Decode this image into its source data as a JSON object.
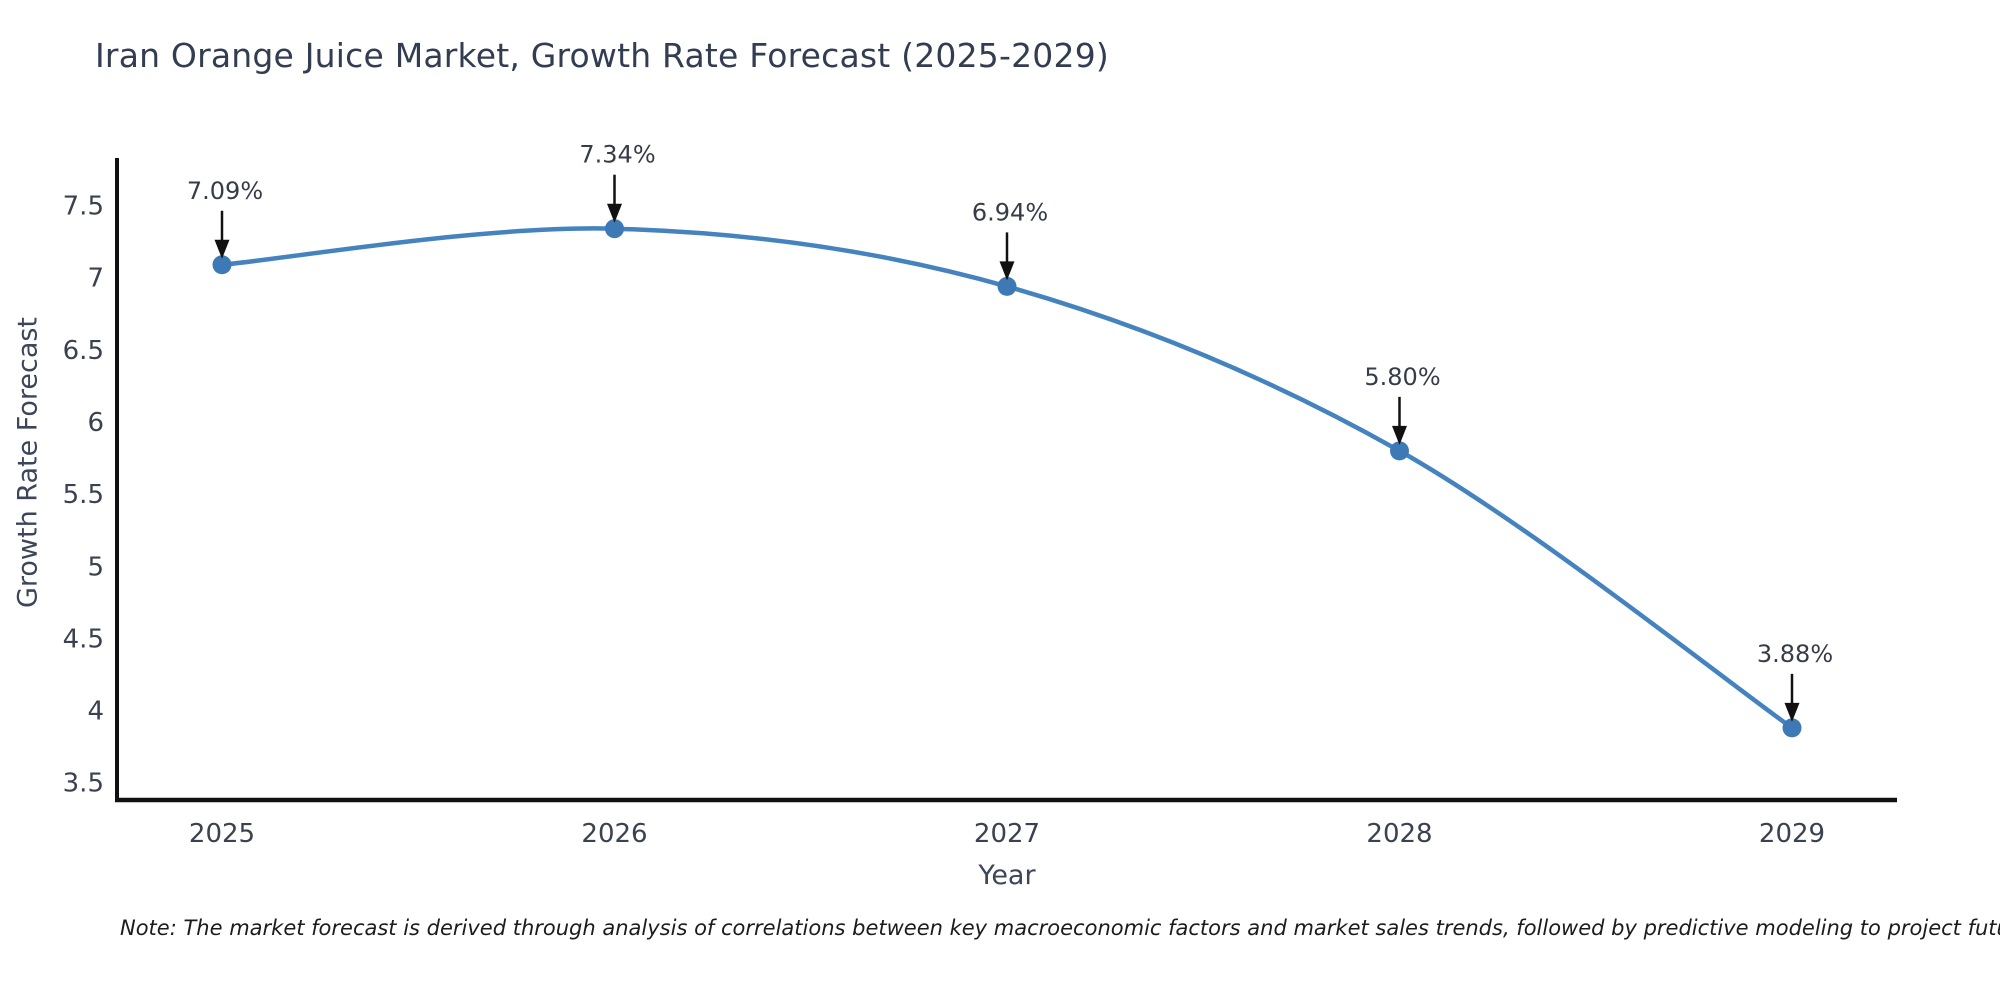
{
  "chart": {
    "title": "Iran Orange Juice Market, Growth Rate Forecast (2025-2029)",
    "xlabel": "Year",
    "ylabel": "Growth Rate Forecast"
  },
  "note": "Note: The market forecast is derived through analysis of correlations between key macroeconomic factors and market sales trends, followed by predictive modeling to project future sales",
  "chart_data": {
    "type": "line",
    "title": "Iran Orange Juice Market, Growth Rate Forecast (2025-2029)",
    "xlabel": "Year",
    "ylabel": "Growth Rate Forecast",
    "x": [
      2025,
      2026,
      2027,
      2028,
      2029
    ],
    "series": [
      {
        "name": "Growth Rate Forecast",
        "values": [
          7.09,
          7.34,
          6.94,
          5.8,
          3.88
        ]
      }
    ],
    "point_labels": [
      "7.09%",
      "7.34%",
      "6.94%",
      "5.80%",
      "3.88%"
    ],
    "ylim": [
      3.38,
      7.83
    ],
    "yticks": [
      3.5,
      4,
      4.5,
      5,
      5.5,
      6,
      6.5,
      7,
      7.5
    ],
    "grid": false,
    "legend_position": "none",
    "line_color": "#4583bf",
    "marker_color": "#3d7ab5",
    "axis_color": "#111111",
    "annotation_color": "#111111"
  }
}
